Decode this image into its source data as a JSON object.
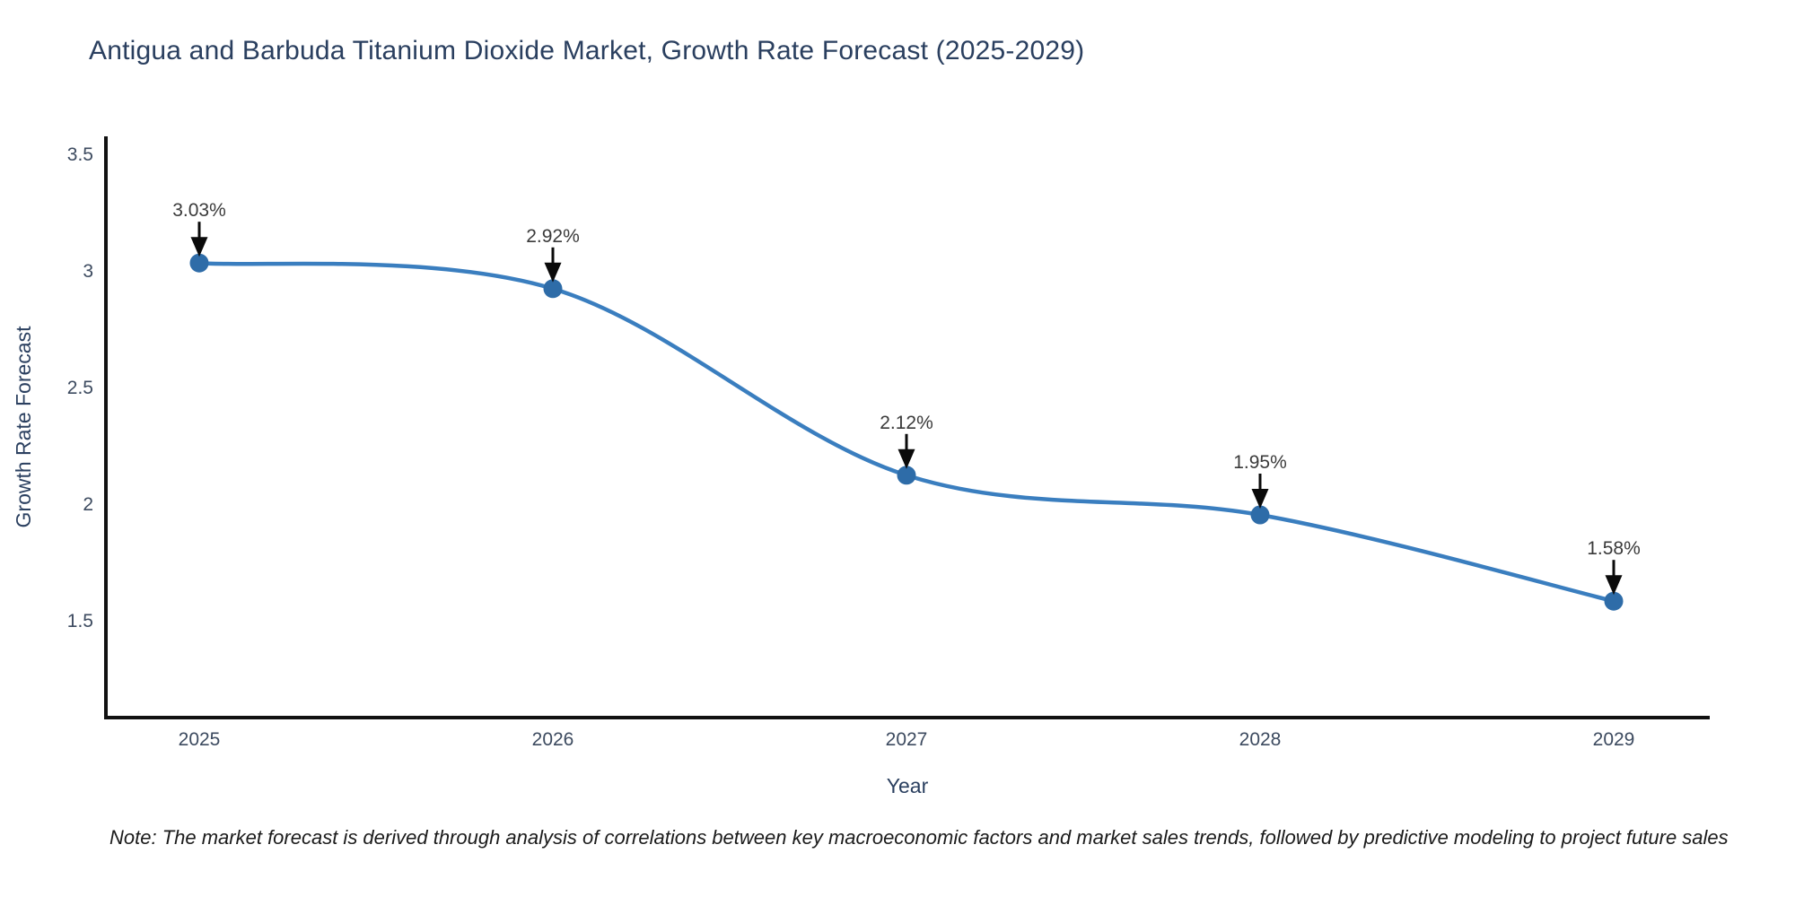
{
  "chart_data": {
    "type": "line",
    "title": "Antigua and Barbuda Titanium Dioxide Market, Growth Rate Forecast (2025-2029)",
    "xlabel": "Year",
    "ylabel": "Growth Rate Forecast",
    "categories": [
      "2025",
      "2026",
      "2027",
      "2028",
      "2029"
    ],
    "values": [
      3.03,
      2.92,
      2.12,
      1.95,
      1.58
    ],
    "point_labels": [
      "3.03%",
      "2.92%",
      "2.12%",
      "1.95%",
      "1.58%"
    ],
    "yticks": [
      1.5,
      2,
      2.5,
      3,
      3.5
    ],
    "ytick_labels": [
      "1.5",
      "2",
      "2.5",
      "3",
      "3.5"
    ],
    "ylim": [
      1.08,
      3.57
    ],
    "line_shape": "spline",
    "grid": false,
    "legend": false,
    "markers": true,
    "colors": {
      "line": "#3a7ebf",
      "marker": "#2e6ca8",
      "arrow": "#0a0a0a",
      "annotation_text": "#3a3a3a",
      "axis_line": "#111111",
      "title_text": "#2a3f5f",
      "tick_text": "#3c4a5f",
      "note_text": "#1b1b1b",
      "background": "#ffffff"
    }
  },
  "note": {
    "text": "Note: The market forecast is derived through analysis of correlations between key macroeconomic factors and market sales trends, followed by predictive modeling to project future sales"
  }
}
